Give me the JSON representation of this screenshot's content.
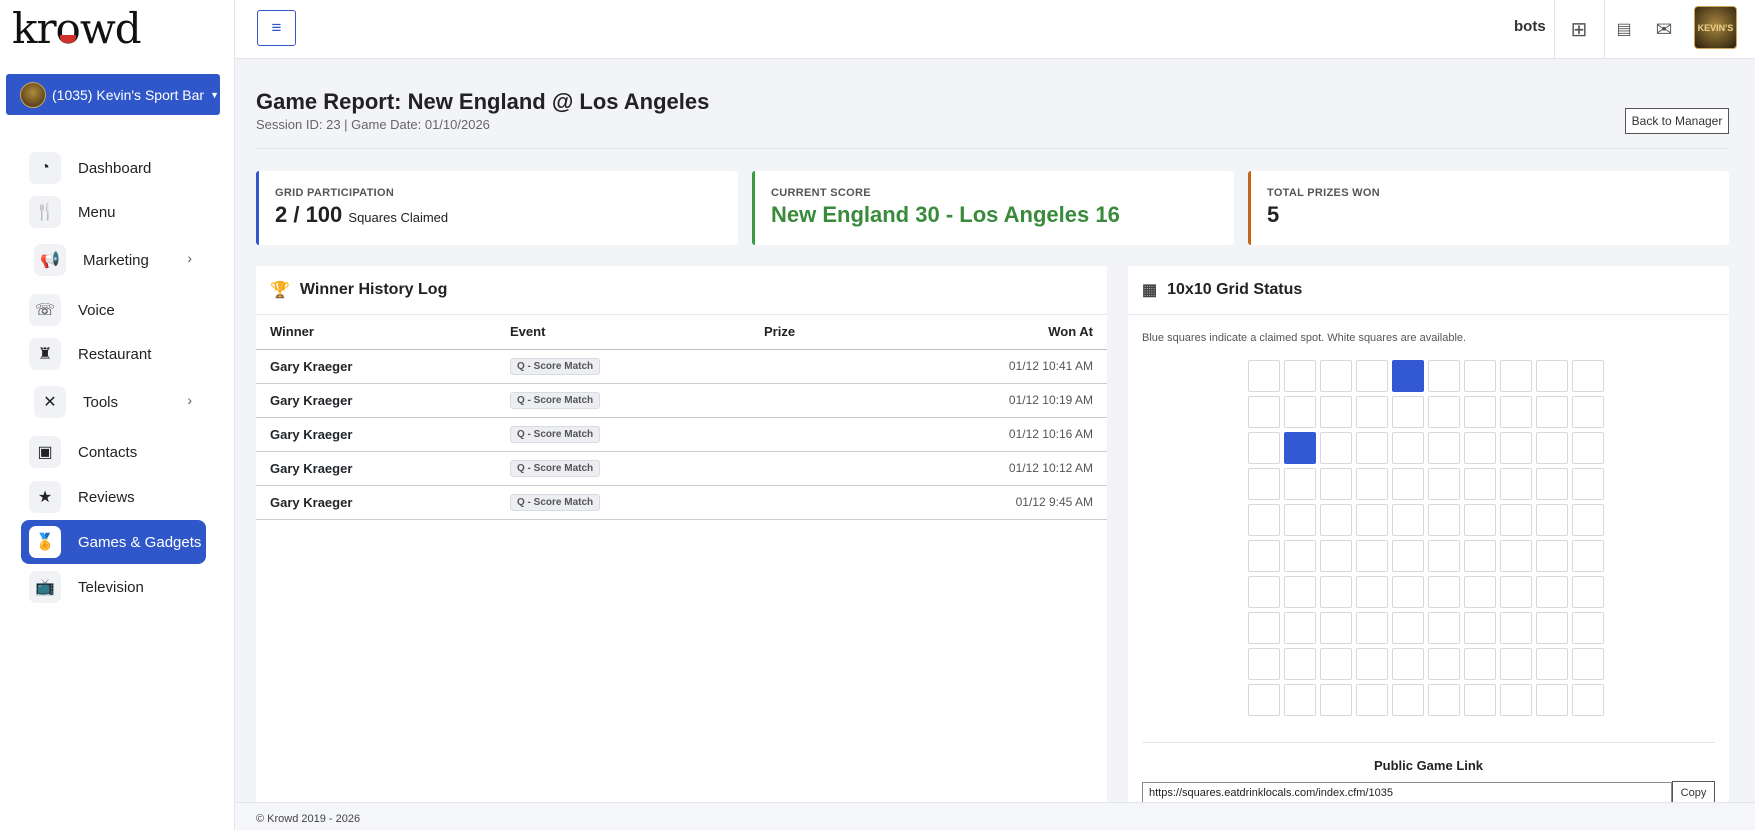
{
  "brand": {
    "logo_text": "krowd"
  },
  "account": {
    "label": "(1035) Kevin's Sport Bar"
  },
  "header": {
    "menu_icon": "hamburger-icon",
    "bots_label": "bots",
    "avatar_text": "KEVIN'S"
  },
  "sidebar": {
    "items": [
      {
        "label": "Dashboard",
        "icon": "dashboard-icon"
      },
      {
        "label": "Menu",
        "icon": "utensils-icon"
      },
      {
        "label": "Marketing",
        "icon": "megaphone-icon"
      },
      {
        "label": "Voice",
        "icon": "phone-icon"
      },
      {
        "label": "Restaurant",
        "icon": "chef-icon"
      },
      {
        "label": "Tools",
        "icon": "tools-icon"
      },
      {
        "label": "Contacts",
        "icon": "contacts-icon"
      },
      {
        "label": "Reviews",
        "icon": "star-icon"
      },
      {
        "label": "Games & Gadgets",
        "icon": "medal-icon"
      },
      {
        "label": "Television",
        "icon": "tv-icon"
      }
    ],
    "active": "Games & Gadgets"
  },
  "page": {
    "title": "Game Report: New England @ Los Angeles",
    "subtitle": "Session ID: 23 | Game Date: 01/10/2026",
    "back_button": "Back to Manager"
  },
  "stats": {
    "participation": {
      "label": "GRID PARTICIPATION",
      "value": "2 / 100",
      "suffix": "Squares Claimed"
    },
    "score": {
      "label": "CURRENT SCORE",
      "value": "New England 30 - Los Angeles 16"
    },
    "prizes": {
      "label": "TOTAL PRIZES WON",
      "value": "5"
    }
  },
  "winners": {
    "title": "Winner History Log",
    "columns": [
      "Winner",
      "Event",
      "Prize",
      "Won At"
    ],
    "rows": [
      {
        "winner": "Gary Kraeger",
        "event": "Q - Score Match",
        "prize": "",
        "won_at": "01/12 10:41 AM"
      },
      {
        "winner": "Gary Kraeger",
        "event": "Q - Score Match",
        "prize": "",
        "won_at": "01/12 10:19 AM"
      },
      {
        "winner": "Gary Kraeger",
        "event": "Q - Score Match",
        "prize": "",
        "won_at": "01/12 10:16 AM"
      },
      {
        "winner": "Gary Kraeger",
        "event": "Q - Score Match",
        "prize": "",
        "won_at": "01/12 10:12 AM"
      },
      {
        "winner": "Gary Kraeger",
        "event": "Q - Score Match",
        "prize": "",
        "won_at": "01/12 9:45 AM"
      }
    ]
  },
  "grid": {
    "title": "10x10 Grid Status",
    "description": "Blue squares indicate a claimed spot. White squares are available.",
    "rows": 10,
    "cols": 10,
    "claimed": [
      [
        0,
        4
      ],
      [
        2,
        1
      ]
    ],
    "claimed_color": "#3358d4",
    "public_link_label": "Public Game Link",
    "public_link": "https://squares.eatdrinklocals.com/index.cfm/1035",
    "copy_label": "Copy"
  },
  "footer": {
    "text": "© Krowd 2019 - 2026"
  }
}
